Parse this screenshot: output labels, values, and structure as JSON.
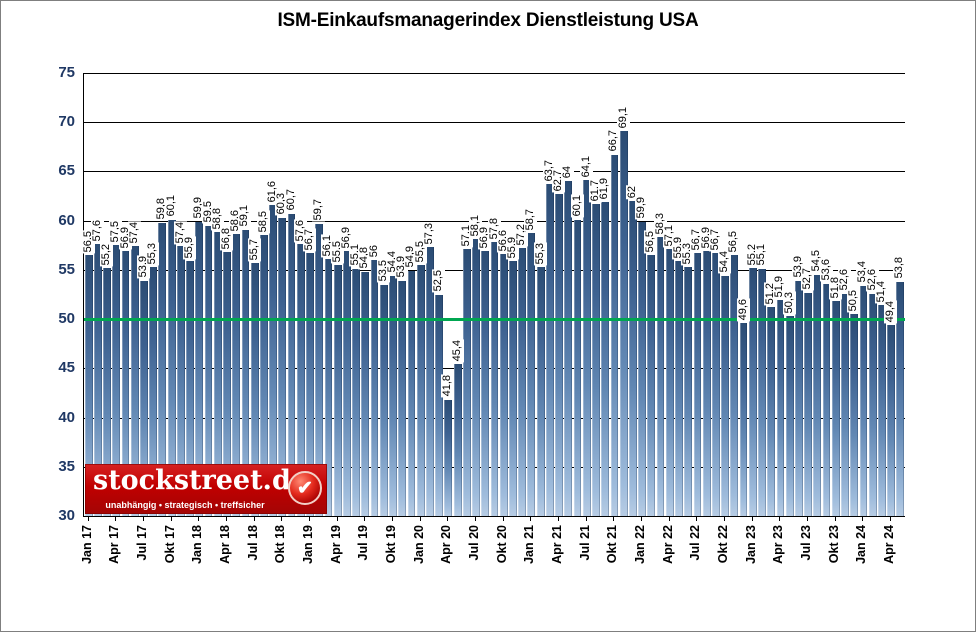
{
  "chart_data": {
    "type": "bar",
    "title": "ISM-Einkaufsmanagerindex Dienstleistung USA",
    "xlabel": "",
    "ylabel": "",
    "ylim": [
      30,
      75
    ],
    "yticks": [
      30,
      35,
      40,
      45,
      50,
      55,
      60,
      65,
      70,
      75
    ],
    "grid": "horizontal",
    "legend": "none",
    "reference_line": {
      "value": 50,
      "color": "#00a651"
    },
    "x_tick_every": 3,
    "x_tick_labels": [
      "Jan 17",
      "Apr 17",
      "Jul 17",
      "Okt 17",
      "Jan 18",
      "Apr 18",
      "Jul 18",
      "Okt 18",
      "Jan 19",
      "Apr 19",
      "Jul 19",
      "Okt 19",
      "Jan 20",
      "Apr 20",
      "Jul 20",
      "Okt 20",
      "Jan 21",
      "Apr 21",
      "Jul 21",
      "Okt 21",
      "Jan 22",
      "Apr 22",
      "Jul 22",
      "Okt 22",
      "Jan 23",
      "Apr 23",
      "Jul 23",
      "Okt 23",
      "Jan 24",
      "Apr 24"
    ],
    "values": [
      56.5,
      57.6,
      55.2,
      57.5,
      56.9,
      57.4,
      53.9,
      55.3,
      59.8,
      60.1,
      57.4,
      55.9,
      59.9,
      59.5,
      58.8,
      56.8,
      58.6,
      59.1,
      55.7,
      58.5,
      61.6,
      60.3,
      60.7,
      57.6,
      56.7,
      59.7,
      56.1,
      55.5,
      56.9,
      55.1,
      54.8,
      56,
      53.5,
      54.4,
      53.9,
      54.9,
      55.5,
      57.3,
      52.5,
      41.8,
      45.4,
      57.1,
      58.1,
      56.9,
      57.8,
      56.6,
      55.9,
      57.2,
      58.7,
      55.3,
      63.7,
      62.7,
      64,
      60.1,
      64.1,
      61.7,
      61.9,
      66.7,
      69.1,
      62,
      59.9,
      56.5,
      58.3,
      57.1,
      55.9,
      55.3,
      56.7,
      56.9,
      56.7,
      54.4,
      56.5,
      49.6,
      55.2,
      55.1,
      51.2,
      51.9,
      50.3,
      53.9,
      52.7,
      54.5,
      53.6,
      51.8,
      52.6,
      50.5,
      53.4,
      52.6,
      51.4,
      49.4,
      53.8
    ],
    "labels": [
      "56,5",
      "57,6",
      "55,2",
      "57,5",
      "56,9",
      "57,4",
      "53,9",
      "55,3",
      "59,8",
      "60,1",
      "57,4",
      "55,9",
      "59,9",
      "59,5",
      "58,8",
      "56,8",
      "58,6",
      "59,1",
      "55,7",
      "58,5",
      "61,6",
      "60,3",
      "60,7",
      "57,6",
      "56,7",
      "59,7",
      "56,1",
      "55,5",
      "56,9",
      "55,1",
      "54,8",
      "56",
      "53,5",
      "54,4",
      "53,9",
      "54,9",
      "55,5",
      "57,3",
      "52,5",
      "41,8",
      "45,4",
      "57,1",
      "58,1",
      "56,9",
      "57,8",
      "56,6",
      "55,9",
      "57,2",
      "58,7",
      "55,3",
      "63,7",
      "62,7",
      "64",
      "60,1",
      "64,1",
      "61,7",
      "61,9",
      "66,7",
      "69,1",
      "62",
      "59,9",
      "56,5",
      "58,3",
      "57,1",
      "55,9",
      "55,3",
      "56,7",
      "56,9",
      "56,7",
      "54,4",
      "56,5",
      "49,6",
      "55,2",
      "55,1",
      "51,2",
      "51,9",
      "50,3",
      "53,9",
      "52,7",
      "54,5",
      "53,6",
      "51,8",
      "52,6",
      "50,5",
      "53,4",
      "52,6",
      "51,4",
      "49,4",
      "53,8"
    ],
    "bar_color_top": "#2b4c74",
    "bar_color_bottom": "#b7cce4",
    "axis_label_color": "#1f3864"
  },
  "logo": {
    "brand": "stockstreet.de",
    "tagline": "unabhängig • strategisch • treffsicher",
    "bg_color": "#c00000",
    "check": "✔"
  }
}
